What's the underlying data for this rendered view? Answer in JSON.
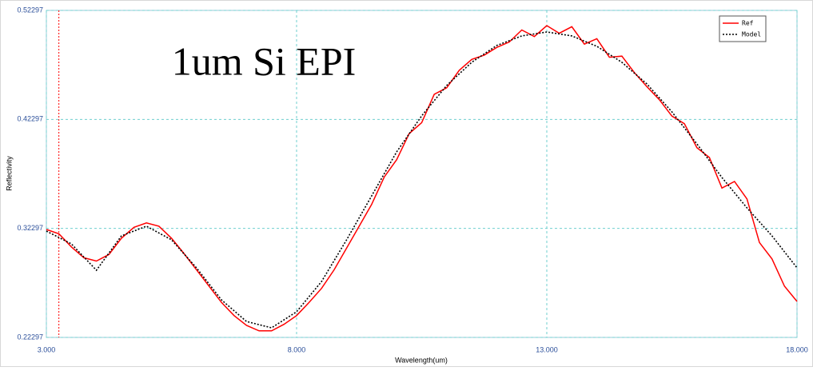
{
  "chart_data": {
    "type": "line",
    "annotation": "1um Si EPI",
    "x_label": "Wavelength(um)",
    "y_label": "Reflectivity",
    "xlim": [
      3,
      18
    ],
    "xticks": [
      {
        "value": 3,
        "label": "3.000"
      },
      {
        "value": 8,
        "label": "8.000"
      },
      {
        "value": 13,
        "label": "13.000"
      },
      {
        "value": 18,
        "label": "18.000"
      }
    ],
    "ylim": [
      0.22297,
      0.52297
    ],
    "yticks": [
      0.22297,
      0.32297,
      0.42297,
      0.52297
    ],
    "grid": true,
    "legend": "top-right",
    "cursor_x": 3.25,
    "series": [
      {
        "name": "Ref",
        "color": "#ff0000",
        "dash": false,
        "x": [
          3,
          3.25,
          3.5,
          3.75,
          4,
          4.25,
          4.5,
          4.75,
          5,
          5.25,
          5.5,
          5.75,
          6,
          6.25,
          6.5,
          6.75,
          7,
          7.25,
          7.5,
          7.75,
          8,
          8.25,
          8.5,
          8.75,
          9,
          9.25,
          9.5,
          9.75,
          10,
          10.25,
          10.5,
          10.75,
          11,
          11.25,
          11.5,
          11.75,
          12,
          12.25,
          12.5,
          12.75,
          13,
          13.25,
          13.5,
          13.75,
          14,
          14.25,
          14.5,
          14.75,
          15,
          15.25,
          15.5,
          15.75,
          16,
          16.25,
          16.5,
          16.75,
          17,
          17.25,
          17.5,
          17.75,
          18
        ],
        "values": [
          0.322,
          0.318,
          0.306,
          0.296,
          0.293,
          0.299,
          0.314,
          0.324,
          0.328,
          0.325,
          0.314,
          0.3,
          0.285,
          0.27,
          0.255,
          0.243,
          0.234,
          0.229,
          0.229,
          0.235,
          0.243,
          0.255,
          0.268,
          0.285,
          0.305,
          0.325,
          0.345,
          0.37,
          0.386,
          0.41,
          0.42,
          0.446,
          0.452,
          0.468,
          0.478,
          0.482,
          0.489,
          0.494,
          0.505,
          0.499,
          0.509,
          0.502,
          0.508,
          0.492,
          0.497,
          0.48,
          0.481,
          0.466,
          0.453,
          0.441,
          0.426,
          0.419,
          0.397,
          0.388,
          0.36,
          0.366,
          0.35,
          0.31,
          0.295,
          0.27,
          0.256
        ]
      },
      {
        "name": "Model",
        "color": "#000000",
        "dash": true,
        "x": [
          3,
          3.5,
          4,
          4.5,
          5,
          5.5,
          6,
          6.5,
          7,
          7.5,
          8,
          8.5,
          9,
          9.5,
          10,
          10.5,
          11,
          11.5,
          12,
          12.5,
          13,
          13.5,
          14,
          14.5,
          15,
          15.5,
          16,
          16.5,
          17,
          17.5,
          18
        ],
        "values": [
          0.3205,
          0.3088,
          0.2846,
          0.3161,
          0.325,
          0.3125,
          0.2868,
          0.2574,
          0.2376,
          0.2318,
          0.2465,
          0.2743,
          0.3125,
          0.3528,
          0.3932,
          0.4262,
          0.4541,
          0.4754,
          0.4908,
          0.4996,
          0.5032,
          0.4996,
          0.49,
          0.4754,
          0.4555,
          0.4299,
          0.4005,
          0.3697,
          0.3418,
          0.3161,
          0.2868
        ]
      }
    ]
  }
}
